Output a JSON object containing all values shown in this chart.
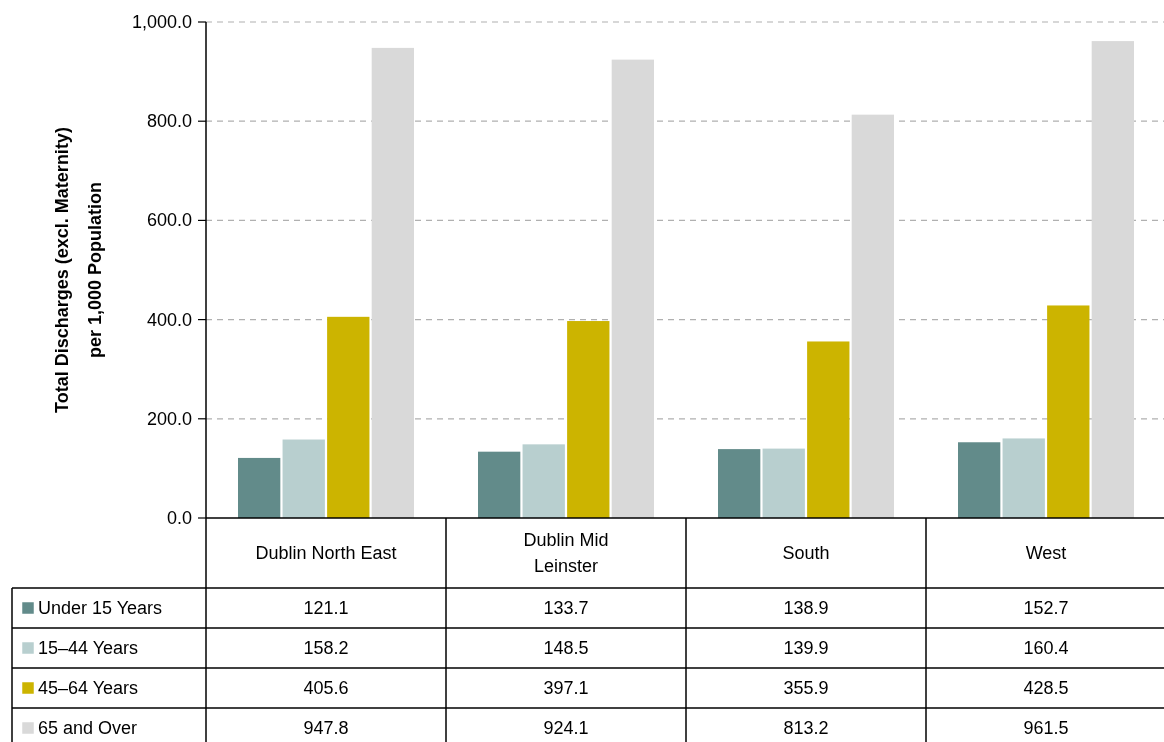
{
  "chart_data": {
    "type": "bar",
    "ylabel": "Total Discharges (excl. Maternity) per 1,000 Population",
    "categories": [
      "Dublin North East",
      "Dublin Mid Leinster",
      "South",
      "West"
    ],
    "series": [
      {
        "name": "Under 15 Years",
        "color": "#628b8a",
        "values": [
          121.1,
          133.7,
          138.9,
          152.7
        ]
      },
      {
        "name": "15–44 Years",
        "color": "#b8cfcf",
        "values": [
          158.2,
          148.5,
          139.9,
          160.4
        ]
      },
      {
        "name": "45–64 Years",
        "color": "#ccb400",
        "values": [
          405.6,
          397.1,
          355.9,
          428.5
        ]
      },
      {
        "name": "65 and Over",
        "color": "#d9d9d9",
        "values": [
          947.8,
          924.1,
          813.2,
          961.5
        ]
      }
    ],
    "ylim": [
      0,
      1000
    ],
    "yticks": [
      {
        "value": 0,
        "label": "0.0"
      },
      {
        "value": 200,
        "label": "200.0"
      },
      {
        "value": 400,
        "label": "400.0"
      },
      {
        "value": 600,
        "label": "600.0"
      },
      {
        "value": 800,
        "label": "800.0"
      },
      {
        "value": 1000,
        "label": "1,000.0"
      }
    ],
    "grid": "y",
    "legend": "bottom",
    "data_labels": true
  }
}
